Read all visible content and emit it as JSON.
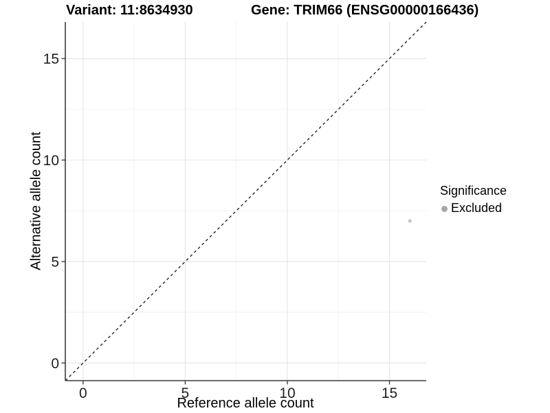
{
  "header": {
    "variant_title": "Variant: 11:8634930",
    "gene_title": "Gene: TRIM66 (ENSG00000166436)"
  },
  "legend": {
    "title": "Significance",
    "items": [
      {
        "label": "Excluded",
        "color": "#a7a7a7"
      }
    ]
  },
  "chart_data": {
    "type": "scatter",
    "title": "Variant: 11:8634930 — Gene: TRIM66 (ENSG00000166436)",
    "xlabel": "Reference allele count",
    "ylabel": "Alternative allele count",
    "xlim": [
      -0.87,
      16.8
    ],
    "ylim": [
      -0.87,
      16.8
    ],
    "x_ticks": [
      0,
      5,
      10,
      15
    ],
    "y_ticks": [
      0,
      5,
      10,
      15
    ],
    "x_minor_ticks": [
      2.5,
      7.5,
      12.5
    ],
    "y_minor_ticks": [
      2.5,
      7.5,
      12.5
    ],
    "grid": true,
    "legend_position": "right",
    "series": [
      {
        "name": "Excluded",
        "color": "#c6c6c6",
        "points": [
          {
            "x": 16,
            "y": 7
          }
        ]
      }
    ],
    "reference_line": {
      "type": "identity",
      "slope": 1,
      "intercept": 0,
      "style": "dashed",
      "color": "#141414"
    }
  },
  "colors": {
    "background": "#ffffff",
    "grid_major": "#e4e4e4",
    "grid_minor": "#f1f1f1",
    "axis_line": "#3a3a3a",
    "tick_mark": "#333333",
    "tick_text": "#1f1f1f",
    "point": "#c6c6c6",
    "legend_point": "#a7a7a7"
  }
}
